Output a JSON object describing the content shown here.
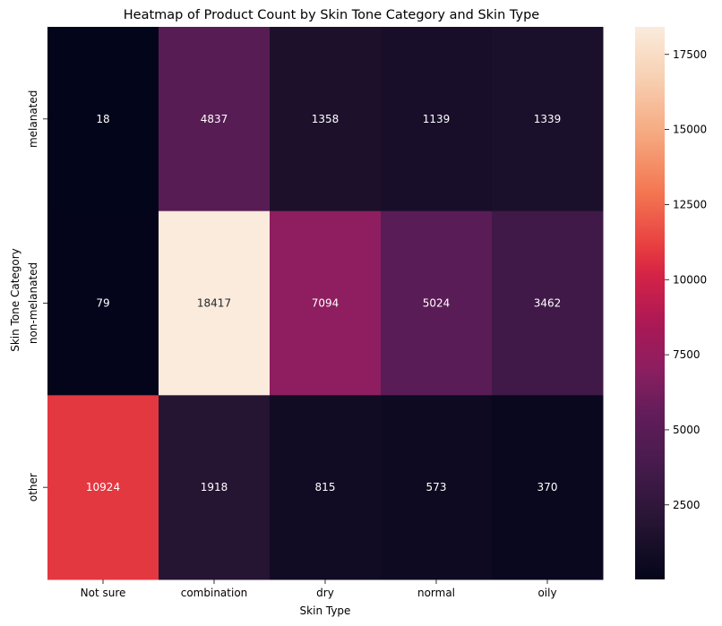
{
  "chart_data": {
    "type": "heatmap",
    "title": "Heatmap of Product Count by Skin Tone Category and Skin Type",
    "xlabel": "Skin Type",
    "ylabel": "Skin Tone Category",
    "x_categories": [
      "Not sure",
      "combination",
      "dry",
      "normal",
      "oily"
    ],
    "y_categories": [
      "melanated",
      "non-melanated",
      "other"
    ],
    "values": [
      [
        18,
        4837,
        1358,
        1139,
        1339
      ],
      [
        79,
        18417,
        7094,
        5024,
        3462
      ],
      [
        10924,
        1918,
        815,
        573,
        370
      ]
    ],
    "colorbar": {
      "ticks": [
        2500,
        5000,
        7500,
        10000,
        12500,
        15000,
        17500
      ],
      "tick_labels": [
        "2500",
        "5000",
        "7500",
        "10000",
        "12500",
        "15000",
        "17500"
      ],
      "vmin": 18,
      "vmax": 18417
    },
    "colormap": "rocket"
  }
}
